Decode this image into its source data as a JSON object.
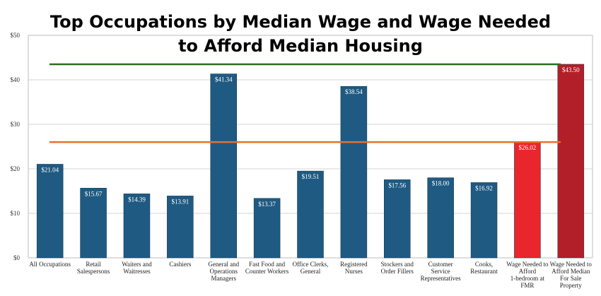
{
  "chart_data": {
    "type": "bar",
    "title": "Top Occupations by Median Wage and Wage Needed\nto Afford Median Housing",
    "xlabel": "",
    "ylabel": "",
    "ylim": [
      0,
      50
    ],
    "yticks": [
      "$0",
      "$10",
      "$20",
      "$30",
      "$40",
      "$50"
    ],
    "grid": true,
    "categories": [
      "All Occupations",
      "Retail\nSalespersons",
      "Waiters and\nWaitresses",
      "Cashiers",
      "General and\nOperations\nManagers",
      "Fast Food and\nCounter Workers",
      "Office Clerks,\nGeneral",
      "Registered\nNurses",
      "Stockers and\nOrder Fillers",
      "Customer\nService\nRepresentatives",
      "Cooks,\nRestaurant",
      "Wage Needed to\nAfford\n1-bedroom at\nFMR",
      "Wage Needed to\nAfford Median\nFor Sale\nProperty"
    ],
    "values": [
      21.04,
      15.67,
      14.39,
      13.91,
      41.34,
      13.37,
      19.51,
      38.54,
      17.56,
      18.0,
      16.92,
      26.02,
      43.5
    ],
    "value_labels": [
      "$21.04",
      "$15.67",
      "$14.39",
      "$13.91",
      "$41.34",
      "$13.37",
      "$19.51",
      "$38.54",
      "$17.56",
      "$18.00",
      "$16.92",
      "$26.02",
      "$43.50"
    ],
    "bar_colors": [
      "#1f5a82",
      "#1f5a82",
      "#1f5a82",
      "#1f5a82",
      "#1f5a82",
      "#1f5a82",
      "#1f5a82",
      "#1f5a82",
      "#1f5a82",
      "#1f5a82",
      "#1f5a82",
      "#e8262c",
      "#b31f29"
    ],
    "reference_lines": [
      {
        "value": 26.02,
        "color": "#e8702a"
      },
      {
        "value": 43.5,
        "color": "#2e6b1e"
      }
    ]
  }
}
